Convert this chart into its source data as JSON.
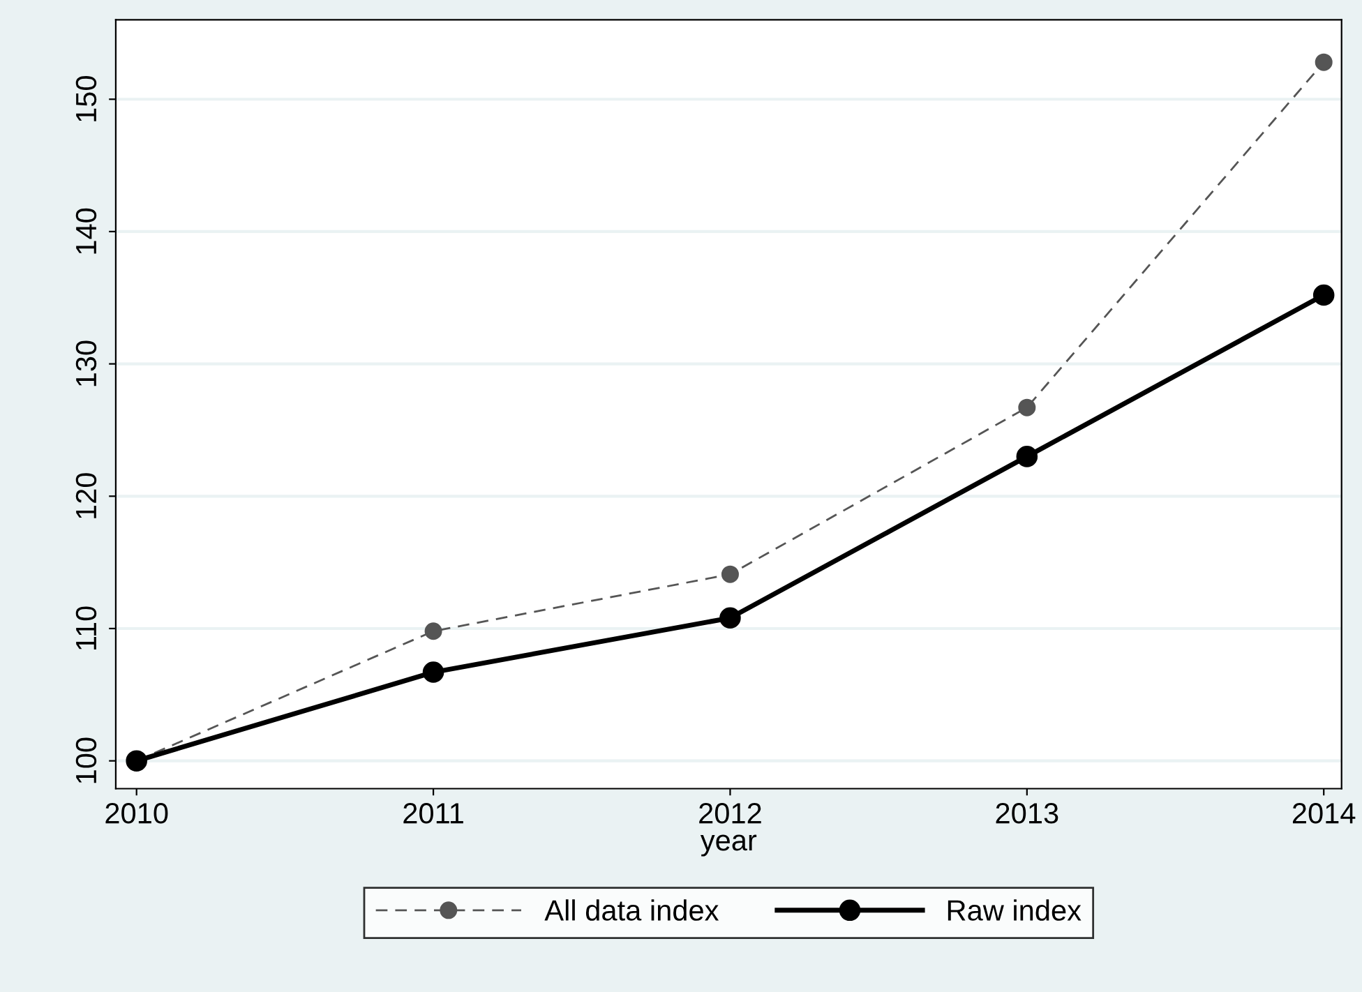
{
  "chart_data": {
    "type": "line",
    "xlabel": "year",
    "x": [
      2010,
      2011,
      2012,
      2013,
      2014
    ],
    "series": [
      {
        "name": "All data index",
        "color": "#555555",
        "line_style": "dashed",
        "values": [
          100,
          109.8,
          114.1,
          126.7,
          152.8
        ]
      },
      {
        "name": "Raw index",
        "color": "#000000",
        "line_style": "solid",
        "values": [
          100,
          106.7,
          110.8,
          123.0,
          135.2
        ]
      }
    ],
    "xlim": [
      2009.93,
      2014.06
    ],
    "xticks": [
      2010,
      2011,
      2012,
      2013,
      2014
    ],
    "ylim": [
      97.9,
      156.0
    ],
    "yticks": [
      100,
      110,
      120,
      130,
      140,
      150
    ],
    "grid": "y",
    "legend": "bottom",
    "marker": "circle"
  }
}
